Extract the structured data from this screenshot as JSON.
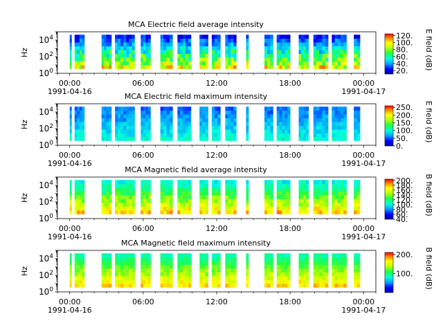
{
  "figure": {
    "background": "#ffffff"
  },
  "chart_data": [
    {
      "type": "heatmap",
      "title": "MCA  Electric field average intensity",
      "ylabel": "Hz",
      "colorbar_label": "E field (dB)",
      "colorbar_ticks": [
        "20.",
        "40.",
        "60.",
        "80.",
        "100.",
        "120."
      ],
      "colorbar_range": [
        10,
        125
      ],
      "y_ticks": [
        {
          "base": "10",
          "exp": "0"
        },
        {
          "base": "10",
          "exp": "2"
        },
        {
          "base": "10",
          "exp": "4"
        }
      ],
      "x_ticks": [
        "00:00",
        "06:00",
        "12:00",
        "18:00",
        "00:00"
      ],
      "x_start_date": "1991-04-16",
      "x_end_date": "1991-04-17",
      "intensity": {
        "low": 25,
        "high": 95,
        "low_spread": 10,
        "mid_spread": 20
      },
      "data_segments_hours": [
        [
          0,
          0.15
        ],
        [
          0.4,
          1.2
        ],
        [
          2.6,
          3.4
        ],
        [
          3.7,
          5.3
        ],
        [
          5.8,
          6.6
        ],
        [
          7.4,
          8.4
        ],
        [
          8.8,
          9.9
        ],
        [
          10.6,
          11.3
        ],
        [
          11.6,
          12.3
        ],
        [
          12.7,
          13.6
        ],
        [
          14.4,
          14.6
        ],
        [
          15.9,
          16.6
        ],
        [
          16.9,
          18.0
        ],
        [
          18.7,
          19.5
        ],
        [
          19.9,
          21.1
        ],
        [
          21.4,
          22.6
        ],
        [
          23.2,
          23.7
        ]
      ]
    },
    {
      "type": "heatmap",
      "title": "MCA  Electric field maximum intensity",
      "ylabel": "Hz",
      "colorbar_label": "E field (dB)",
      "colorbar_ticks": [
        "0.",
        "50.",
        "100.",
        "150.",
        "200.",
        "250."
      ],
      "colorbar_range": [
        0,
        260
      ],
      "y_ticks": [
        {
          "base": "10",
          "exp": "0"
        },
        {
          "base": "10",
          "exp": "2"
        },
        {
          "base": "10",
          "exp": "4"
        }
      ],
      "x_ticks": [
        "00:00",
        "06:00",
        "12:00",
        "18:00",
        "00:00"
      ],
      "x_start_date": "1991-04-16",
      "x_end_date": "1991-04-17",
      "intensity": {
        "low": 55,
        "high": 100,
        "low_spread": 15,
        "mid_spread": 15
      },
      "data_segments_hours": [
        [
          0,
          0.15
        ],
        [
          0.4,
          1.2
        ],
        [
          2.6,
          3.4
        ],
        [
          3.7,
          5.3
        ],
        [
          5.8,
          6.6
        ],
        [
          7.4,
          8.4
        ],
        [
          8.8,
          9.9
        ],
        [
          10.6,
          11.3
        ],
        [
          11.6,
          12.3
        ],
        [
          12.7,
          13.6
        ],
        [
          14.4,
          14.6
        ],
        [
          15.9,
          16.6
        ],
        [
          16.9,
          18.0
        ],
        [
          18.7,
          19.5
        ],
        [
          19.9,
          21.1
        ],
        [
          21.4,
          22.6
        ],
        [
          23.2,
          23.7
        ]
      ]
    },
    {
      "type": "heatmap",
      "title": "MCA  Magnetic field average intensity",
      "ylabel": "Hz",
      "colorbar_label": "B field (dB)",
      "colorbar_ticks": [
        "40.",
        "60.",
        "80.",
        "100.",
        "120.",
        "140.",
        "160.",
        "180.",
        "200."
      ],
      "colorbar_range": [
        40,
        205
      ],
      "y_ticks": [
        {
          "base": "10",
          "exp": "0"
        },
        {
          "base": "10",
          "exp": "2"
        },
        {
          "base": "10",
          "exp": "4"
        }
      ],
      "x_ticks": [
        "00:00",
        "06:00",
        "12:00",
        "18:00",
        "00:00"
      ],
      "x_start_date": "1991-04-16",
      "x_end_date": "1991-04-17",
      "intensity": {
        "low": 100,
        "high": 175,
        "low_spread": 10,
        "mid_spread": 15
      },
      "data_segments_hours": [
        [
          0,
          0.15
        ],
        [
          0.4,
          1.2
        ],
        [
          2.6,
          3.4
        ],
        [
          3.7,
          5.3
        ],
        [
          5.8,
          6.6
        ],
        [
          7.4,
          8.4
        ],
        [
          8.8,
          9.9
        ],
        [
          10.6,
          11.3
        ],
        [
          11.6,
          12.3
        ],
        [
          12.7,
          13.6
        ],
        [
          14.4,
          14.6
        ],
        [
          15.9,
          16.6
        ],
        [
          16.9,
          18.0
        ],
        [
          18.7,
          19.5
        ],
        [
          19.9,
          21.1
        ],
        [
          21.4,
          22.6
        ],
        [
          23.2,
          23.7
        ]
      ]
    },
    {
      "type": "heatmap",
      "title": "MCA  Magnetic field maximum intensity",
      "ylabel": "Hz",
      "colorbar_label": "B field (dB)",
      "colorbar_ticks": [
        "100.",
        "200."
      ],
      "colorbar_range": [
        0,
        210
      ],
      "y_ticks": [
        {
          "base": "10",
          "exp": "0"
        },
        {
          "base": "10",
          "exp": "2"
        },
        {
          "base": "10",
          "exp": "4"
        }
      ],
      "x_ticks": [
        "00:00",
        "06:00",
        "12:00",
        "18:00",
        "00:00"
      ],
      "x_start_date": "1991-04-16",
      "x_end_date": "1991-04-17",
      "intensity": {
        "low": 90,
        "high": 170,
        "low_spread": 10,
        "mid_spread": 15
      },
      "data_segments_hours": [
        [
          0,
          0.15
        ],
        [
          0.4,
          1.2
        ],
        [
          2.6,
          3.4
        ],
        [
          3.7,
          5.3
        ],
        [
          5.8,
          6.6
        ],
        [
          7.4,
          8.4
        ],
        [
          8.8,
          9.9
        ],
        [
          10.6,
          11.3
        ],
        [
          11.6,
          12.3
        ],
        [
          12.7,
          13.6
        ],
        [
          14.4,
          14.6
        ],
        [
          15.9,
          16.6
        ],
        [
          16.9,
          18.0
        ],
        [
          18.7,
          19.5
        ],
        [
          19.9,
          21.1
        ],
        [
          21.4,
          22.6
        ],
        [
          23.2,
          23.7
        ]
      ]
    }
  ]
}
